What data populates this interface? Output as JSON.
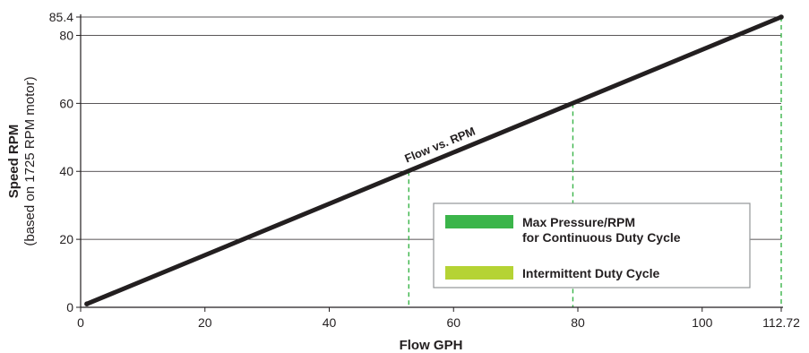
{
  "chart_data": {
    "type": "line",
    "xlabel": "Flow GPH",
    "ylabel": "Speed RPM",
    "ylabel_sub": "(based on 1725 RPM motor)",
    "xlim": [
      0,
      112.72
    ],
    "ylim": [
      0,
      85.4
    ],
    "x_ticks": [
      "0",
      "20",
      "40",
      "60",
      "80",
      "100",
      "112.72"
    ],
    "x_tick_values": [
      0,
      20,
      40,
      60,
      80,
      100,
      112.72
    ],
    "y_ticks": [
      "0",
      "20",
      "40",
      "60",
      "80",
      "85.4"
    ],
    "y_tick_values": [
      0,
      20,
      40,
      60,
      80,
      85.4
    ],
    "grid": "horizontal",
    "series": [
      {
        "name": "Flow vs. RPM",
        "x": [
          1,
          112.72
        ],
        "y": [
          1,
          85.4
        ],
        "color": "#231f20"
      }
    ],
    "vertical_markers": [
      {
        "x": 52.8,
        "y": 40,
        "color": "#3bb54a"
      },
      {
        "x": 79.2,
        "y": 60,
        "color": "#3bb54a"
      },
      {
        "x": 112.72,
        "y": 85.4,
        "color": "#3bb54a"
      }
    ],
    "legend": {
      "placement": "lower-right",
      "items": [
        {
          "lines": [
            "Max Pressure/RPM",
            "for Continuous Duty Cycle"
          ],
          "color": "#3bb54a"
        },
        {
          "lines": [
            "Intermittent Duty Cycle"
          ],
          "color": "#b5d334"
        }
      ]
    }
  }
}
